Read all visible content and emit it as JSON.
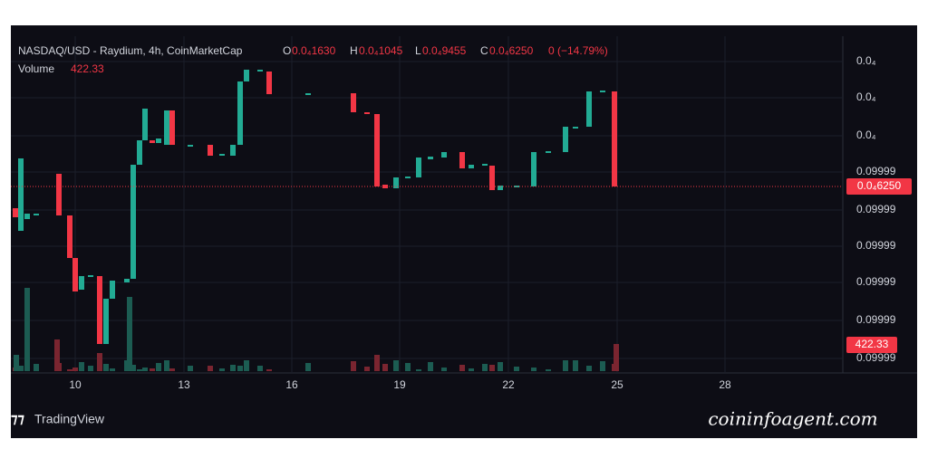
{
  "header": {
    "symbol": "NASDAQ/USD - Raydium, 4h, CoinMarketCap",
    "open_label": "O",
    "open": "0.0₄1630",
    "high_label": "H",
    "high": "0.0₄1045",
    "low_label": "L",
    "low": "0.0₄9455",
    "close_label": "C",
    "close": "0.0₄6250",
    "change": "0 (−14.79%)",
    "volume_label": "Volume",
    "volume": "422.33"
  },
  "y_axis": [
    "0.0₄",
    "0.0₄",
    "0.0₄",
    "0.09999",
    "0.09999",
    "0.09999",
    "0.09999",
    "0.09999",
    "0.09999"
  ],
  "x_axis": [
    "10",
    "13",
    "16",
    "19",
    "22",
    "25",
    "28"
  ],
  "price_tag": "0.0₄6250",
  "volume_tag": "422.33",
  "footer": {
    "brand": "TradingView",
    "watermark": "coininfoagent.com"
  }
}
